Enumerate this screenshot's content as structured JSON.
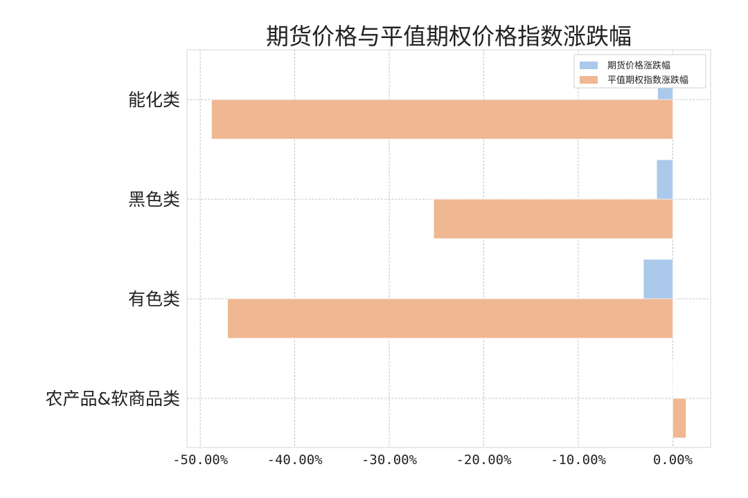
{
  "chart_data": {
    "type": "bar",
    "orientation": "horizontal",
    "title": "期货价格与平值期权价格指数涨跌幅",
    "categories": [
      "能化类",
      "黑色类",
      "有色类",
      "农产品&软商品类"
    ],
    "series": [
      {
        "name": "期货价格涨跌幅",
        "color": "#abc9ea",
        "values": [
          -1.6,
          -1.7,
          -3.1,
          0.0
        ]
      },
      {
        "name": "平值期权指数涨跌幅",
        "color": "#efb792",
        "values": [
          -48.8,
          -25.3,
          -47.1,
          1.4
        ]
      }
    ],
    "xticks": [
      -50,
      -40,
      -30,
      -20,
      -10,
      0
    ],
    "xtick_labels": [
      "-50.00%",
      "-40.00%",
      "-30.00%",
      "-20.00%",
      "-10.00%",
      "0.00%"
    ],
    "xlim": [
      -51.4,
      4.0
    ],
    "xlabel": "",
    "ylabel": "",
    "grid": true,
    "legend_position": "top-right"
  }
}
